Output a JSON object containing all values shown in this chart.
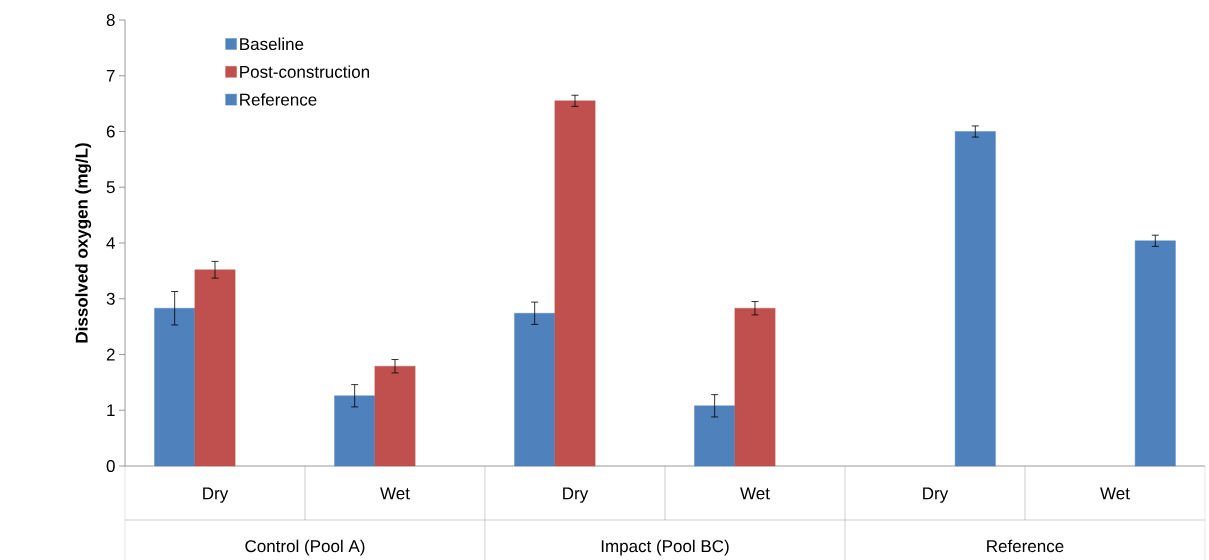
{
  "chart_data": {
    "type": "bar",
    "ylabel": "Dissolved oxygen (mg/L)",
    "categories": [
      "Dry",
      "Wet",
      "Dry",
      "Wet",
      "Dry",
      "Wet"
    ],
    "annotations": [
      "Control (Pool A)",
      "Impact (Pool BC)",
      "Reference"
    ],
    "series": [
      {
        "name": "Baseline",
        "color": "#4f81bd",
        "values": [
          2.83,
          1.26,
          2.74,
          1.08,
          null,
          null
        ],
        "errors": [
          0.3,
          0.2,
          0.2,
          0.2,
          null,
          null
        ]
      },
      {
        "name": "Post-construction",
        "color": "#c0504d",
        "values": [
          3.52,
          1.79,
          6.55,
          2.83,
          null,
          null
        ],
        "errors": [
          0.15,
          0.12,
          0.1,
          0.12,
          null,
          null
        ]
      },
      {
        "name": "Reference",
        "color": "#4f81bd",
        "values": [
          null,
          null,
          null,
          null,
          6.0,
          4.04
        ],
        "errors": [
          null,
          null,
          null,
          null,
          0.1,
          0.1
        ]
      }
    ],
    "ylim": [
      0,
      8
    ],
    "yticks": [
      0,
      1,
      2,
      3,
      4,
      5,
      6,
      7,
      8
    ],
    "legend": "top left",
    "grid": false
  }
}
